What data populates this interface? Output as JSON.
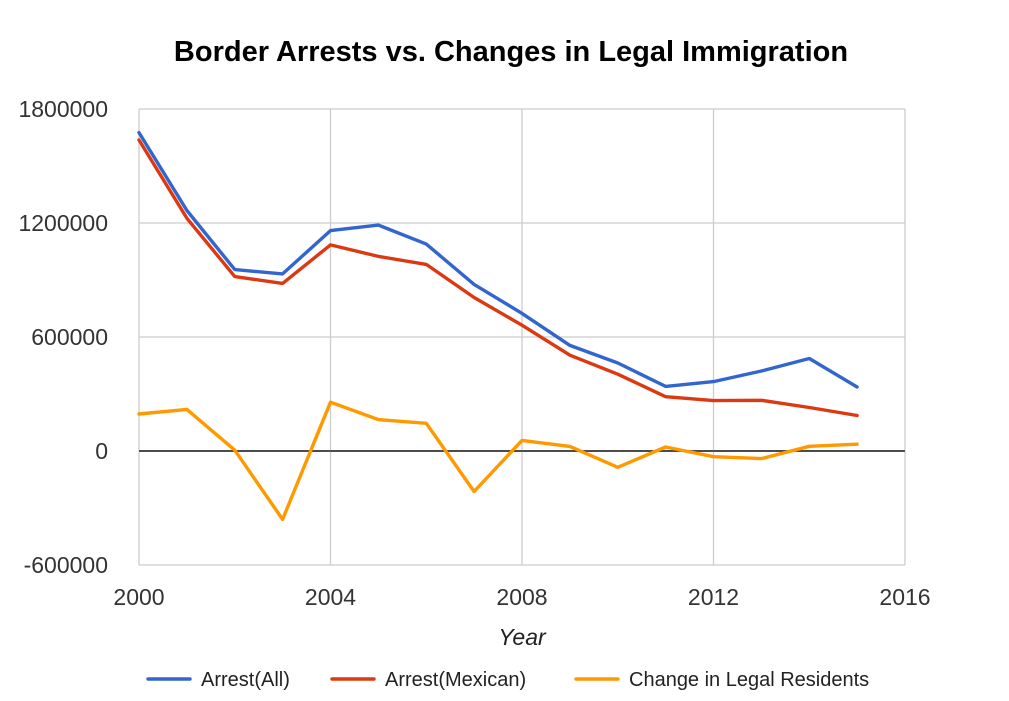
{
  "chart_data": {
    "type": "line",
    "title": "Border Arrests vs. Changes in Legal Immigration",
    "xlabel": "Year",
    "ylabel": "",
    "xlim": [
      2000,
      2016
    ],
    "ylim": [
      -600000,
      1800000
    ],
    "x_ticks": [
      "2000",
      "2004",
      "2008",
      "2012",
      "2016"
    ],
    "y_ticks": [
      "1800000",
      "1200000",
      "600000",
      "0",
      "-600000"
    ],
    "grid": true,
    "legend_position": "bottom",
    "x": [
      2000,
      2001,
      2002,
      2003,
      2004,
      2005,
      2006,
      2007,
      2008,
      2009,
      2010,
      2011,
      2012,
      2013,
      2014,
      2015
    ],
    "series": [
      {
        "name": "Arrest(All)",
        "color": "#3366cc",
        "values": [
          1676000,
          1266000,
          955000,
          932000,
          1160000,
          1189000,
          1089000,
          877000,
          724000,
          556000,
          463000,
          340000,
          365000,
          421000,
          487000,
          337000
        ]
      },
      {
        "name": "Arrest(Mexican)",
        "color": "#dc3912",
        "values": [
          1637000,
          1225000,
          918000,
          882000,
          1085000,
          1024000,
          982000,
          808000,
          662000,
          504000,
          404000,
          286000,
          265000,
          267000,
          229000,
          187000
        ]
      },
      {
        "name": "Change in Legal Residents",
        "color": "#ff9900",
        "values": [
          195000,
          219000,
          4000,
          -360000,
          257000,
          165000,
          146000,
          -213000,
          56000,
          24000,
          -86000,
          21000,
          -30000,
          -40000,
          25000,
          36000
        ]
      }
    ]
  }
}
